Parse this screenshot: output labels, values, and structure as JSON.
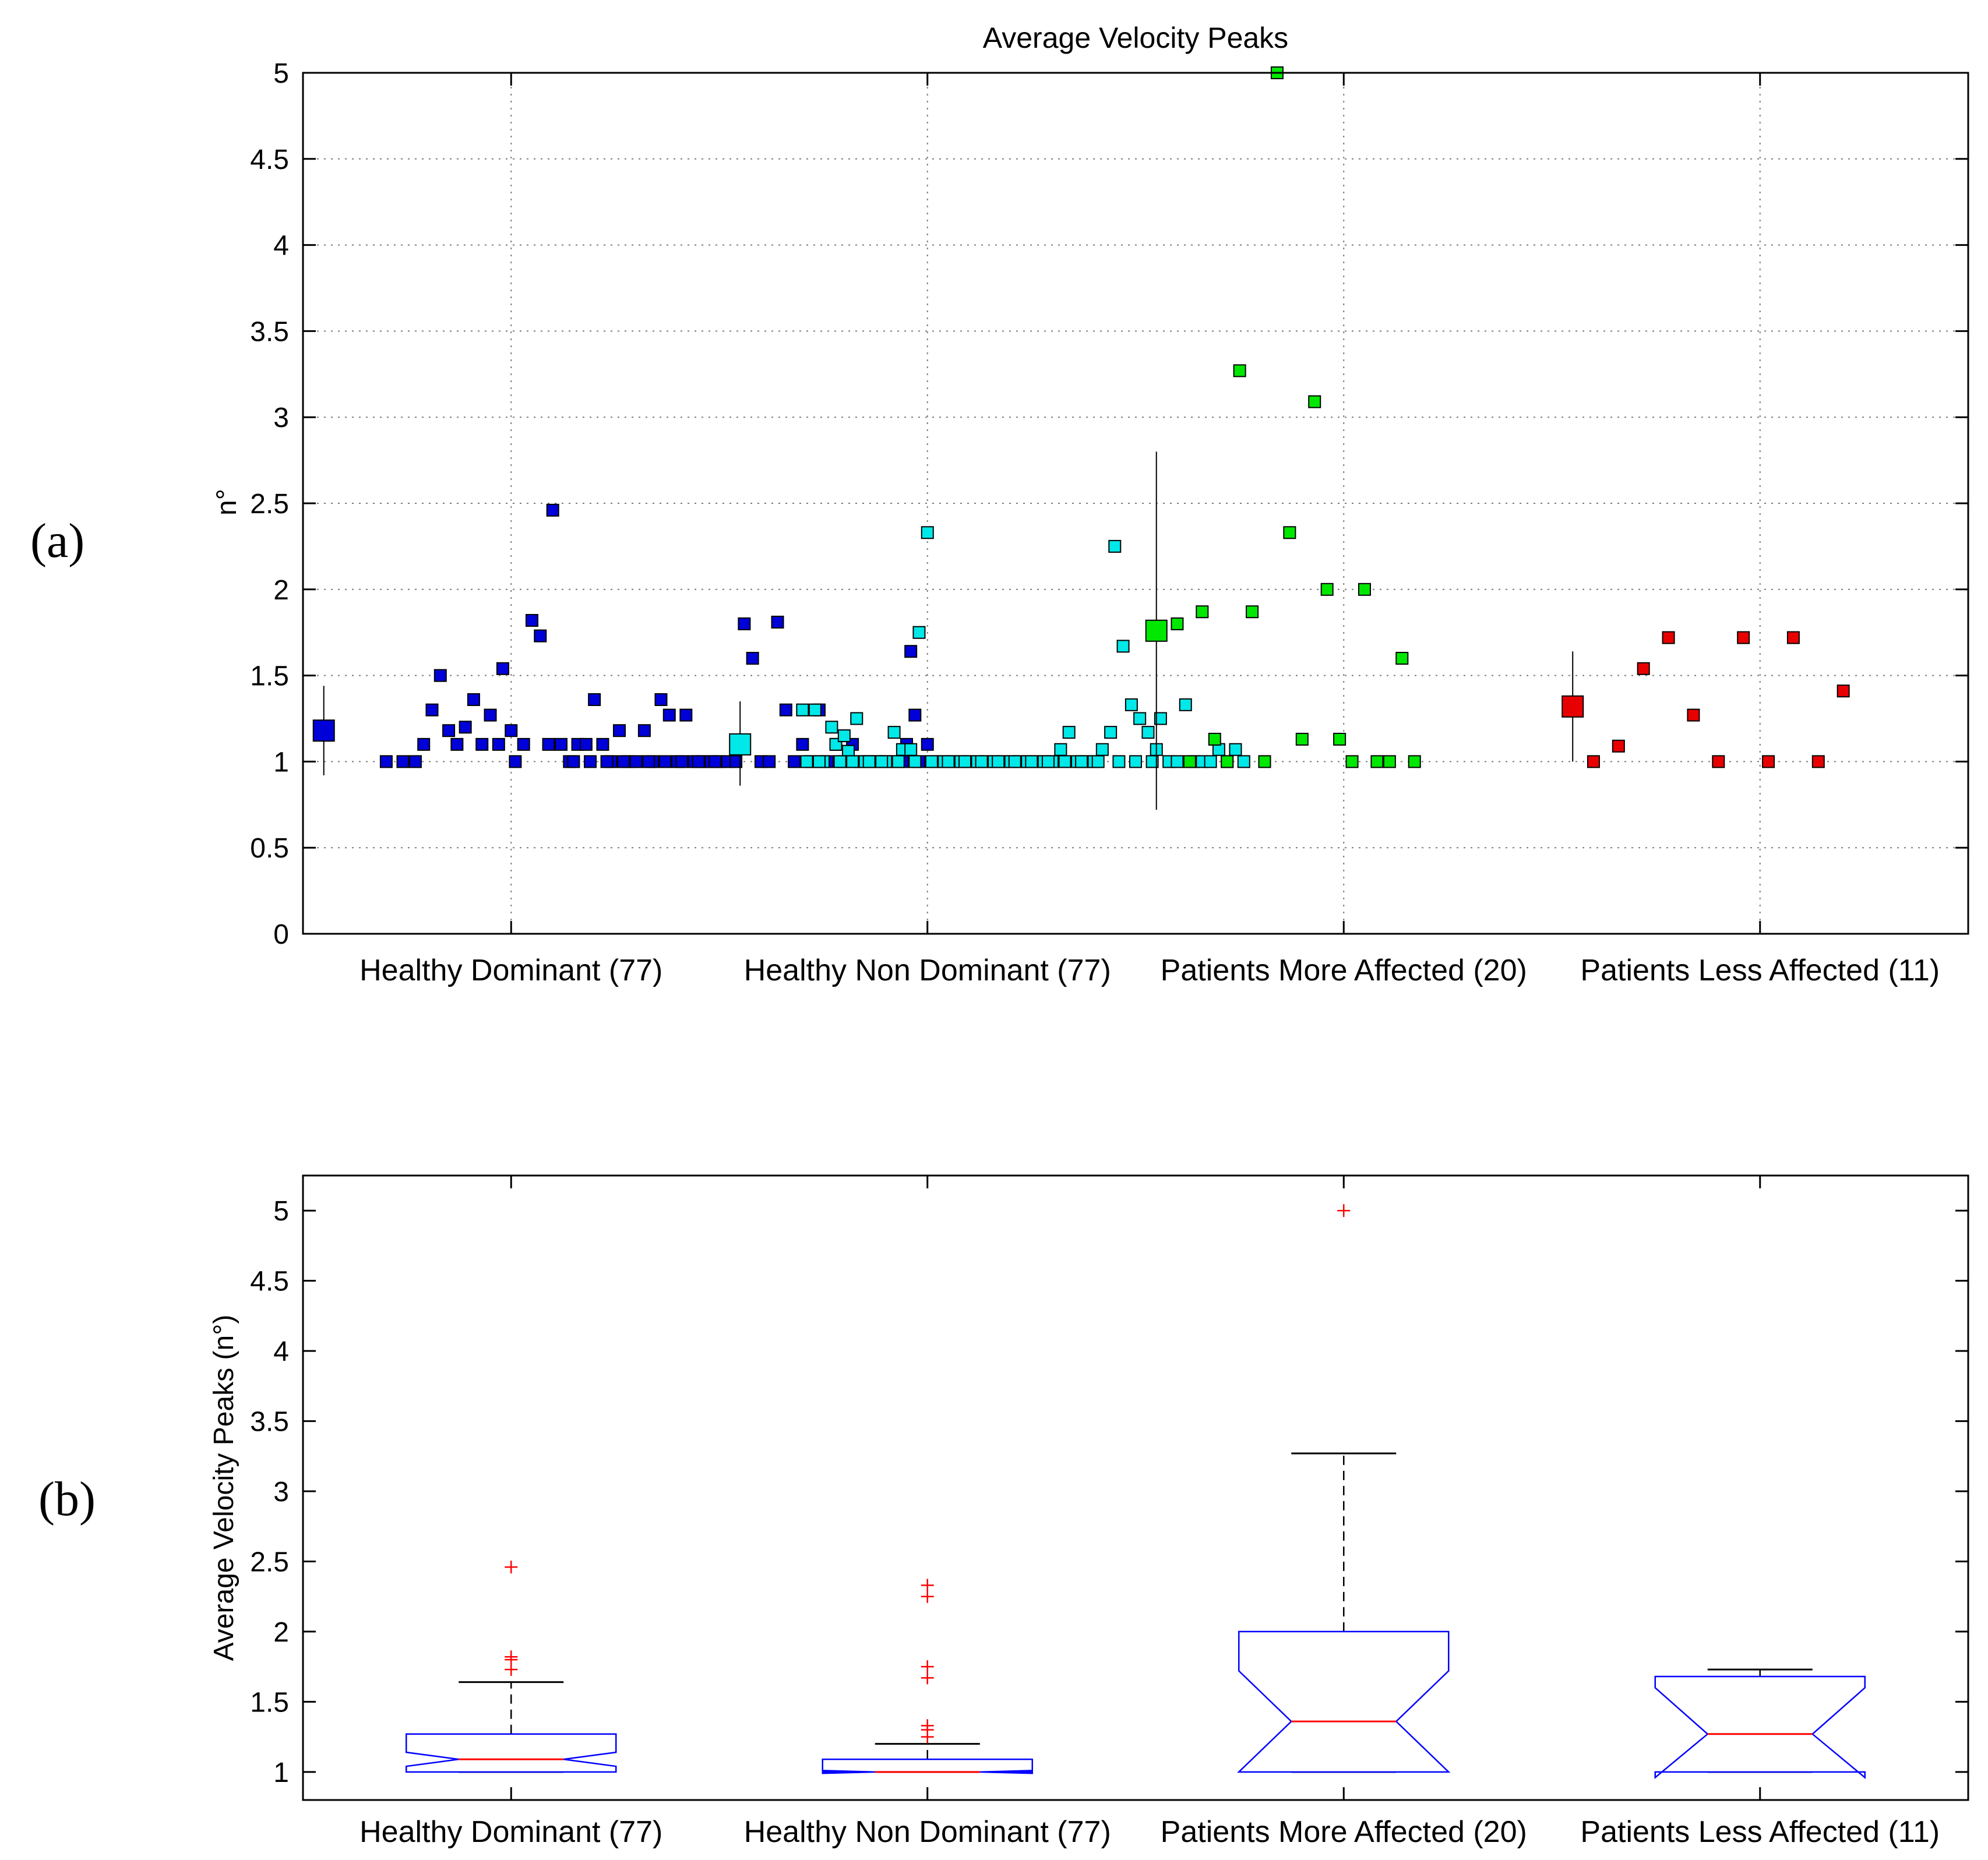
{
  "panel_labels": {
    "a": "(a)",
    "b": "(b)"
  },
  "chart_data": [
    {
      "id": "panel-a",
      "type": "scatter",
      "title": "Average Velocity Peaks",
      "xlabel": "",
      "ylabel": "n°",
      "ylim": [
        0,
        5
      ],
      "yticks": [
        0,
        0.5,
        1,
        1.5,
        2,
        2.5,
        3,
        3.5,
        4,
        4.5,
        5
      ],
      "ytick_labels": [
        "0",
        "0.5",
        "1",
        "1.5",
        "2",
        "2.5",
        "3",
        "3.5",
        "4",
        "4.5",
        "5"
      ],
      "grid": true,
      "categories": [
        "Healthy Dominant (77)",
        "Healthy Non Dominant (77)",
        "Patients More Affected (20)",
        "Patients Less Affected (11)"
      ],
      "series": [
        {
          "name": "Healthy Dominant (77)",
          "color": "#0000d8",
          "mean": 1.18,
          "sd_low": 0.92,
          "sd_high": 1.44,
          "points": [
            [
              0.2,
              1.0
            ],
            [
              0.24,
              1.0
            ],
            [
              0.27,
              1.0
            ],
            [
              0.29,
              1.1
            ],
            [
              0.31,
              1.3
            ],
            [
              0.33,
              1.5
            ],
            [
              0.35,
              1.18
            ],
            [
              0.37,
              1.1
            ],
            [
              0.39,
              1.2
            ],
            [
              0.41,
              1.36
            ],
            [
              0.43,
              1.1
            ],
            [
              0.45,
              1.27
            ],
            [
              0.47,
              1.1
            ],
            [
              0.48,
              1.54
            ],
            [
              0.5,
              1.18
            ],
            [
              0.51,
              1.0
            ],
            [
              0.53,
              1.1
            ],
            [
              0.55,
              1.82
            ],
            [
              0.57,
              1.73
            ],
            [
              0.59,
              1.1
            ],
            [
              0.6,
              2.46
            ],
            [
              0.62,
              1.1
            ],
            [
              0.64,
              1.0
            ],
            [
              0.66,
              1.1
            ],
            [
              0.68,
              1.1
            ],
            [
              0.7,
              1.36
            ],
            [
              0.72,
              1.1
            ],
            [
              0.74,
              1.0
            ],
            [
              0.76,
              1.18
            ],
            [
              0.78,
              1.0
            ],
            [
              0.8,
              1.0
            ],
            [
              0.82,
              1.18
            ],
            [
              0.84,
              1.0
            ],
            [
              0.86,
              1.36
            ],
            [
              0.88,
              1.27
            ],
            [
              0.9,
              1.0
            ],
            [
              0.92,
              1.27
            ],
            [
              0.94,
              1.0
            ],
            [
              0.96,
              1.0
            ],
            [
              0.98,
              1.0
            ],
            [
              1.0,
              1.0
            ],
            [
              1.02,
              1.0
            ],
            [
              1.04,
              1.0
            ],
            [
              1.06,
              1.8
            ],
            [
              1.08,
              1.6
            ],
            [
              1.1,
              1.0
            ],
            [
              1.12,
              1.0
            ],
            [
              1.14,
              1.81
            ],
            [
              1.16,
              1.3
            ],
            [
              1.18,
              1.0
            ],
            [
              1.2,
              1.1
            ],
            [
              1.22,
              1.0
            ],
            [
              1.24,
              1.3
            ],
            [
              1.26,
              1.0
            ],
            [
              1.28,
              1.1
            ],
            [
              1.3,
              1.0
            ],
            [
              1.32,
              1.1
            ],
            [
              1.34,
              1.0
            ],
            [
              1.36,
              1.0
            ],
            [
              1.38,
              1.0
            ],
            [
              1.4,
              1.0
            ],
            [
              1.42,
              1.0
            ],
            [
              1.44,
              1.0
            ],
            [
              1.45,
              1.1
            ],
            [
              1.46,
              1.64
            ],
            [
              1.47,
              1.27
            ],
            [
              1.48,
              1.0
            ],
            [
              1.5,
              1.1
            ],
            [
              0.65,
              1.0
            ],
            [
              0.69,
              1.0
            ],
            [
              0.73,
              1.0
            ],
            [
              0.77,
              1.0
            ],
            [
              0.83,
              1.0
            ],
            [
              0.87,
              1.0
            ],
            [
              0.91,
              1.0
            ],
            [
              0.95,
              1.0
            ],
            [
              0.99,
              1.0
            ]
          ]
        },
        {
          "name": "Healthy Non Dominant (77)",
          "color": "#00e8e8",
          "mean": 1.1,
          "sd_low": 0.86,
          "sd_high": 1.35,
          "points": [
            [
              1.2,
              1.3
            ],
            [
              1.23,
              1.3
            ],
            [
              1.25,
              1.0
            ],
            [
              1.27,
              1.2
            ],
            [
              1.28,
              1.1
            ],
            [
              1.3,
              1.15
            ],
            [
              1.31,
              1.06
            ],
            [
              1.33,
              1.25
            ],
            [
              1.35,
              1.0
            ],
            [
              1.38,
              1.0
            ],
            [
              1.4,
              1.0
            ],
            [
              1.42,
              1.17
            ],
            [
              1.44,
              1.07
            ],
            [
              1.46,
              1.07
            ],
            [
              1.48,
              1.75
            ],
            [
              1.5,
              2.33
            ],
            [
              1.52,
              1.0
            ],
            [
              1.54,
              1.0
            ],
            [
              1.56,
              1.0
            ],
            [
              1.58,
              1.0
            ],
            [
              1.6,
              1.0
            ],
            [
              1.62,
              1.0
            ],
            [
              1.64,
              1.0
            ],
            [
              1.66,
              1.0
            ],
            [
              1.68,
              1.0
            ],
            [
              1.7,
              1.0
            ],
            [
              1.72,
              1.0
            ],
            [
              1.74,
              1.0
            ],
            [
              1.76,
              1.0
            ],
            [
              1.78,
              1.0
            ],
            [
              1.8,
              1.0
            ],
            [
              1.82,
              1.07
            ],
            [
              1.84,
              1.17
            ],
            [
              1.86,
              1.0
            ],
            [
              1.88,
              1.0
            ],
            [
              1.9,
              1.0
            ],
            [
              1.92,
              1.07
            ],
            [
              1.94,
              1.17
            ],
            [
              1.95,
              2.25
            ],
            [
              1.97,
              1.67
            ],
            [
              1.99,
              1.33
            ],
            [
              2.01,
              1.25
            ],
            [
              2.03,
              1.17
            ],
            [
              2.05,
              1.07
            ],
            [
              2.06,
              1.25
            ],
            [
              2.08,
              1.0
            ],
            [
              2.1,
              1.0
            ],
            [
              2.12,
              1.33
            ],
            [
              2.14,
              1.0
            ],
            [
              2.16,
              1.0
            ],
            [
              2.18,
              1.0
            ],
            [
              2.2,
              1.07
            ],
            [
              2.22,
              1.0
            ],
            [
              2.24,
              1.07
            ],
            [
              2.26,
              1.0
            ],
            [
              1.21,
              1.0
            ],
            [
              1.24,
              1.0
            ],
            [
              1.29,
              1.0
            ],
            [
              1.32,
              1.0
            ],
            [
              1.36,
              1.0
            ],
            [
              1.39,
              1.0
            ],
            [
              1.43,
              1.0
            ],
            [
              1.47,
              1.0
            ],
            [
              1.51,
              1.0
            ],
            [
              1.55,
              1.0
            ],
            [
              1.59,
              1.0
            ],
            [
              1.63,
              1.0
            ],
            [
              1.67,
              1.0
            ],
            [
              1.71,
              1.0
            ],
            [
              1.75,
              1.0
            ],
            [
              1.79,
              1.0
            ],
            [
              1.83,
              1.0
            ],
            [
              1.87,
              1.0
            ],
            [
              1.91,
              1.0
            ],
            [
              1.96,
              1.0
            ],
            [
              2.0,
              1.0
            ],
            [
              2.04,
              1.0
            ]
          ]
        },
        {
          "name": "Patients More Affected (20)",
          "color": "#00e800",
          "mean": 1.76,
          "sd_low": 0.72,
          "sd_high": 2.8,
          "points": [
            [
              2.1,
              1.8
            ],
            [
              2.13,
              1.0
            ],
            [
              2.16,
              1.87
            ],
            [
              2.19,
              1.13
            ],
            [
              2.22,
              1.0
            ],
            [
              2.25,
              3.27
            ],
            [
              2.28,
              1.87
            ],
            [
              2.31,
              1.0
            ],
            [
              2.34,
              5.0
            ],
            [
              2.37,
              2.33
            ],
            [
              2.4,
              1.13
            ],
            [
              2.43,
              3.09
            ],
            [
              2.46,
              2.0
            ],
            [
              2.49,
              1.13
            ],
            [
              2.52,
              1.0
            ],
            [
              2.55,
              2.0
            ],
            [
              2.58,
              1.0
            ],
            [
              2.61,
              1.0
            ],
            [
              2.64,
              1.6
            ],
            [
              2.67,
              1.0
            ]
          ]
        },
        {
          "name": "Patients Less Affected (11)",
          "color": "#e80000",
          "mean": 1.32,
          "sd_low": 1.0,
          "sd_high": 1.64,
          "points": [
            [
              3.1,
              1.0
            ],
            [
              3.16,
              1.09
            ],
            [
              3.22,
              1.54
            ],
            [
              3.28,
              1.72
            ],
            [
              3.34,
              1.27
            ],
            [
              3.4,
              1.0
            ],
            [
              3.46,
              1.72
            ],
            [
              3.52,
              1.0
            ],
            [
              3.58,
              1.72
            ],
            [
              3.64,
              1.0
            ],
            [
              3.7,
              1.41
            ]
          ]
        }
      ]
    },
    {
      "id": "panel-b",
      "type": "boxplot",
      "title": "",
      "xlabel": "",
      "ylabel": "Average Velocity Peaks (n°)",
      "ylim": [
        0.8,
        5.25
      ],
      "yticks": [
        1,
        1.5,
        2,
        2.5,
        3,
        3.5,
        4,
        4.5,
        5
      ],
      "ytick_labels": [
        "1",
        "1.5",
        "2",
        "2.5",
        "3",
        "3.5",
        "4",
        "4.5",
        "5"
      ],
      "grid": false,
      "categories": [
        "Healthy Dominant (77)",
        "Healthy Non Dominant (77)",
        "Patients More Affected (20)",
        "Patients Less Affected (11)"
      ],
      "box_color": "#0000ff",
      "median_color": "#ff0000",
      "outlier_color": "#ff0000",
      "boxes": [
        {
          "name": "Healthy Dominant (77)",
          "q1": 1.0,
          "median": 1.09,
          "q3": 1.27,
          "notch_low": 1.04,
          "notch_high": 1.14,
          "whisker_low": 1.0,
          "whisker_high": 1.64,
          "outliers": [
            1.73,
            1.8,
            1.82,
            2.46
          ]
        },
        {
          "name": "Healthy Non Dominant (77)",
          "q1": 1.0,
          "median": 1.0,
          "q3": 1.09,
          "notch_low": 0.99,
          "notch_high": 1.01,
          "whisker_low": 1.0,
          "whisker_high": 1.2,
          "outliers": [
            1.25,
            1.3,
            1.33,
            1.67,
            1.75,
            2.25,
            2.33
          ]
        },
        {
          "name": "Patients More Affected (20)",
          "q1": 1.0,
          "median": 1.36,
          "q3": 2.0,
          "notch_low": 1.0,
          "notch_high": 1.72,
          "whisker_low": 1.0,
          "whisker_high": 3.27,
          "outliers": [
            5.0
          ]
        },
        {
          "name": "Patients Less Affected (11)",
          "q1": 1.0,
          "median": 1.27,
          "q3": 1.68,
          "notch_low": 0.96,
          "notch_high": 1.6,
          "whisker_low": 1.0,
          "whisker_high": 1.73,
          "outliers": []
        }
      ]
    }
  ]
}
